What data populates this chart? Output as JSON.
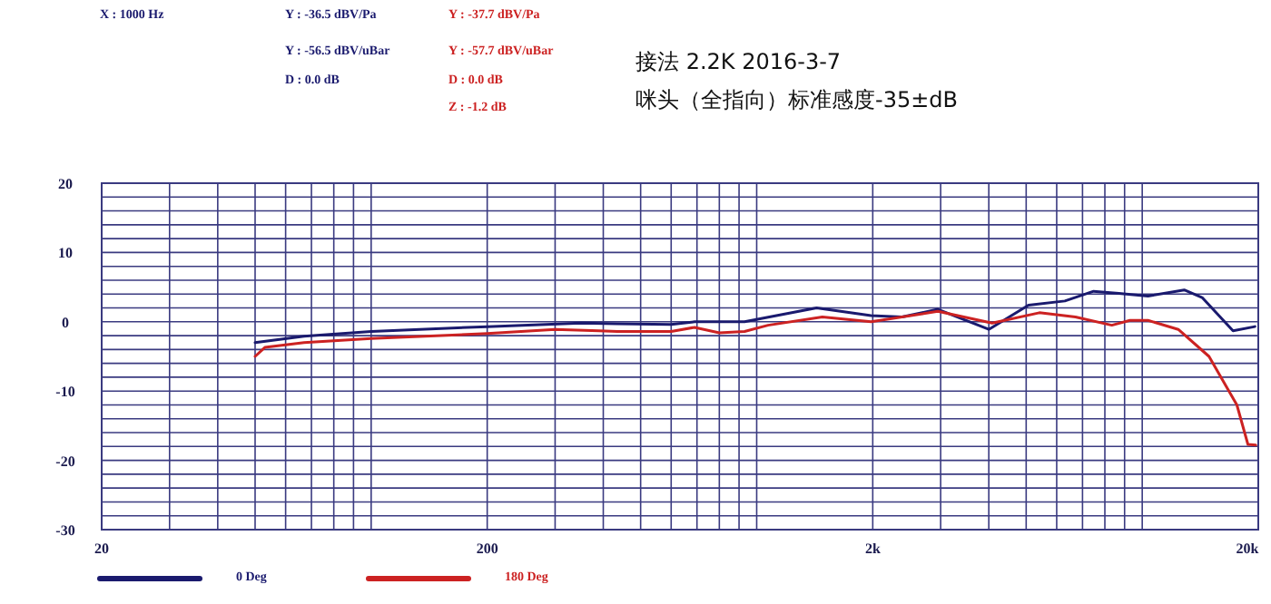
{
  "chart_data": {
    "type": "line",
    "title": "接法 2.2K 2016-3-7",
    "subtitle": "咪头（全指向）标准感度-35±dB",
    "annotations": [
      "X : 1000 Hz",
      "Y : -36.5 dBV/Pa",
      "Y : -56.5 dBV/uBar",
      "D : 0.0 dB",
      "Y : -37.7 dBV/Pa",
      "Y : -57.7 dBV/uBar",
      "D : 0.0 dB",
      "Z : -1.2 dB"
    ],
    "log": "x",
    "grid": true,
    "legend": "bottom left",
    "line_style": "solid",
    "xlim": [
      20,
      20000
    ],
    "ylim": [
      -30,
      20
    ],
    "xticks": [
      20,
      {
        "value": 30,
        "label": null
      },
      {
        "value": 40,
        "label": null
      },
      {
        "value": 50,
        "label": null
      },
      {
        "value": 60,
        "label": null
      },
      {
        "value": 70,
        "label": null
      },
      {
        "value": 80,
        "label": null
      },
      {
        "value": 90,
        "label": null
      },
      {
        "value": 100,
        "label": null
      },
      200,
      {
        "value": 300,
        "label": null
      },
      {
        "value": 400,
        "label": null
      },
      {
        "value": 500,
        "label": null
      },
      {
        "value": 600,
        "label": null
      },
      {
        "value": 700,
        "label": null
      },
      {
        "value": 800,
        "label": null
      },
      {
        "value": 900,
        "label": null
      },
      {
        "value": 1000,
        "label": null
      },
      {
        "value": 2000,
        "label": "2k"
      },
      {
        "value": 3000,
        "label": null
      },
      {
        "value": 4000,
        "label": null
      },
      {
        "value": 5000,
        "label": null
      },
      {
        "value": 6000,
        "label": null
      },
      {
        "value": 7000,
        "label": null
      },
      {
        "value": 8000,
        "label": null
      },
      {
        "value": 9000,
        "label": null
      },
      {
        "value": 10000,
        "label": null
      },
      {
        "value": 20000,
        "label": "20k"
      }
    ],
    "yticks": [
      -30,
      {
        "value": -28,
        "label": null
      },
      {
        "value": -26,
        "label": null
      },
      {
        "value": -24,
        "label": null
      },
      {
        "value": -22,
        "label": null
      },
      -20,
      {
        "value": -18,
        "label": null
      },
      {
        "value": -16,
        "label": null
      },
      {
        "value": -14,
        "label": null
      },
      {
        "value": -12,
        "label": null
      },
      -10,
      {
        "value": -8,
        "label": null
      },
      {
        "value": -6,
        "label": null
      },
      {
        "value": -4,
        "label": null
      },
      {
        "value": -2,
        "label": null
      },
      0,
      {
        "value": 2,
        "label": null
      },
      {
        "value": 4,
        "label": null
      },
      {
        "value": 6,
        "label": null
      },
      {
        "value": 8,
        "label": null
      },
      10,
      {
        "value": 12,
        "label": null
      },
      {
        "value": 14,
        "label": null
      },
      {
        "value": 16,
        "label": null
      },
      {
        "value": 18,
        "label": null
      },
      20
    ],
    "series": [
      {
        "name": "0 Deg",
        "color": "#1a1a6e",
        "x": [
          50,
          67,
          100,
          200,
          350,
          435,
          600,
          690,
          930,
          1430,
          1980,
          2380,
          2950,
          4000,
          5070,
          6300,
          7480,
          8700,
          10350,
          12850,
          14300,
          17200,
          19600
        ],
        "values": [
          -3.0,
          -2.1,
          -1.4,
          -0.7,
          -0.2,
          -0.3,
          -0.4,
          0.0,
          0.0,
          2.0,
          0.9,
          0.7,
          1.8,
          -1.1,
          2.4,
          3.0,
          4.4,
          4.1,
          3.7,
          4.6,
          3.5,
          -1.3,
          -0.7
        ]
      },
      {
        "name": "180 Deg",
        "color": "#cc2222",
        "x": [
          50,
          53,
          67,
          100,
          200,
          300,
          390,
          435,
          600,
          690,
          800,
          930,
          1070,
          1480,
          1980,
          2950,
          4080,
          5410,
          6710,
          8340,
          9290,
          10350,
          12400,
          14900,
          17600,
          18800,
          19700
        ],
        "values": [
          -5.0,
          -3.7,
          -3.0,
          -2.4,
          -1.7,
          -1.1,
          -1.3,
          -1.4,
          -1.4,
          -0.8,
          -1.6,
          -1.4,
          -0.5,
          0.7,
          0.0,
          1.5,
          -0.2,
          1.3,
          0.7,
          -0.5,
          0.2,
          0.2,
          -1.1,
          -5.0,
          -12.0,
          -17.7,
          -17.8
        ]
      }
    ]
  }
}
